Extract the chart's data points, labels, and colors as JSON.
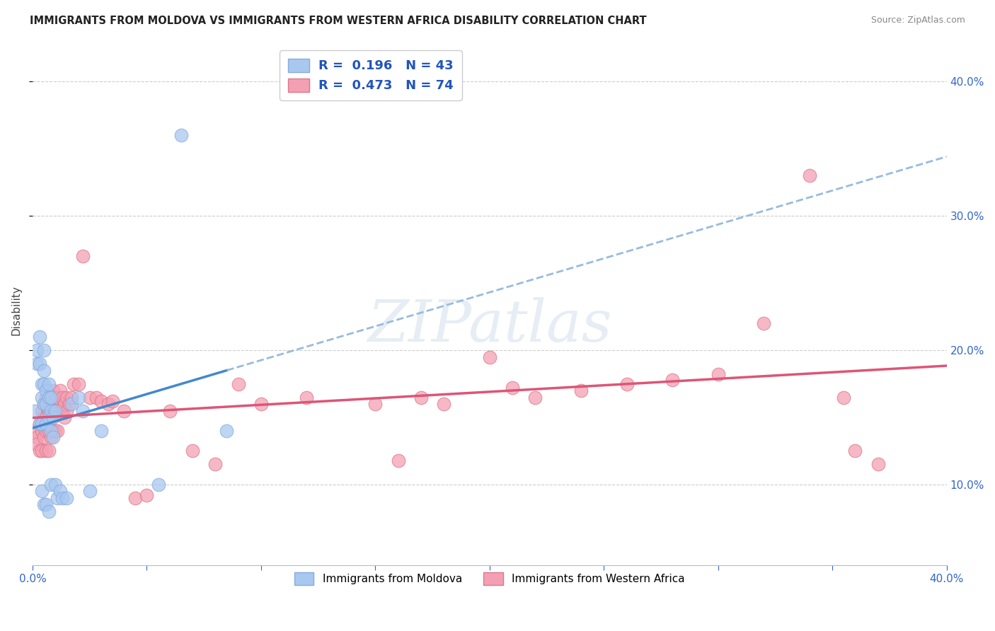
{
  "title": "IMMIGRANTS FROM MOLDOVA VS IMMIGRANTS FROM WESTERN AFRICA DISABILITY CORRELATION CHART",
  "source": "Source: ZipAtlas.com",
  "ylabel": "Disability",
  "xlim": [
    0.0,
    0.4
  ],
  "ylim": [
    0.04,
    0.42
  ],
  "R_moldova": 0.196,
  "N_moldova": 43,
  "R_western_africa": 0.473,
  "N_western_africa": 74,
  "color_moldova": "#a8c8f0",
  "color_moldova_edge": "#88aadd",
  "color_western_africa": "#f4a0b4",
  "color_western_africa_edge": "#dd7788",
  "trendline_moldova_solid_color": "#4488cc",
  "trendline_moldova_dash_color": "#99bbdd",
  "trendline_western_africa_color": "#dd5577",
  "background_color": "#ffffff",
  "grid_color": "#cccccc",
  "moldova_x": [
    0.001,
    0.002,
    0.002,
    0.003,
    0.003,
    0.003,
    0.004,
    0.004,
    0.004,
    0.004,
    0.005,
    0.005,
    0.005,
    0.005,
    0.005,
    0.006,
    0.006,
    0.006,
    0.006,
    0.007,
    0.007,
    0.007,
    0.007,
    0.008,
    0.008,
    0.008,
    0.008,
    0.009,
    0.009,
    0.01,
    0.01,
    0.011,
    0.012,
    0.013,
    0.015,
    0.017,
    0.02,
    0.022,
    0.025,
    0.03,
    0.055,
    0.065,
    0.085
  ],
  "moldova_y": [
    0.155,
    0.2,
    0.19,
    0.21,
    0.19,
    0.145,
    0.175,
    0.165,
    0.145,
    0.095,
    0.2,
    0.185,
    0.175,
    0.16,
    0.085,
    0.17,
    0.16,
    0.145,
    0.085,
    0.175,
    0.165,
    0.15,
    0.08,
    0.165,
    0.155,
    0.14,
    0.1,
    0.15,
    0.135,
    0.155,
    0.1,
    0.09,
    0.095,
    0.09,
    0.09,
    0.16,
    0.165,
    0.155,
    0.095,
    0.14,
    0.1,
    0.36,
    0.14
  ],
  "western_africa_x": [
    0.001,
    0.002,
    0.002,
    0.003,
    0.003,
    0.004,
    0.004,
    0.004,
    0.005,
    0.005,
    0.005,
    0.006,
    0.006,
    0.006,
    0.006,
    0.007,
    0.007,
    0.007,
    0.007,
    0.008,
    0.008,
    0.008,
    0.009,
    0.009,
    0.009,
    0.01,
    0.01,
    0.01,
    0.011,
    0.011,
    0.011,
    0.012,
    0.012,
    0.013,
    0.013,
    0.014,
    0.014,
    0.015,
    0.015,
    0.016,
    0.017,
    0.018,
    0.02,
    0.022,
    0.025,
    0.028,
    0.03,
    0.033,
    0.035,
    0.04,
    0.045,
    0.05,
    0.06,
    0.07,
    0.08,
    0.09,
    0.1,
    0.12,
    0.15,
    0.16,
    0.17,
    0.18,
    0.2,
    0.21,
    0.22,
    0.24,
    0.26,
    0.28,
    0.3,
    0.32,
    0.34,
    0.355,
    0.36,
    0.37
  ],
  "western_africa_y": [
    0.14,
    0.135,
    0.13,
    0.145,
    0.125,
    0.155,
    0.14,
    0.125,
    0.16,
    0.15,
    0.135,
    0.165,
    0.15,
    0.14,
    0.125,
    0.16,
    0.155,
    0.14,
    0.125,
    0.16,
    0.15,
    0.135,
    0.17,
    0.155,
    0.14,
    0.165,
    0.155,
    0.14,
    0.165,
    0.155,
    0.14,
    0.17,
    0.155,
    0.165,
    0.155,
    0.16,
    0.15,
    0.165,
    0.155,
    0.16,
    0.165,
    0.175,
    0.175,
    0.27,
    0.165,
    0.165,
    0.162,
    0.16,
    0.162,
    0.155,
    0.09,
    0.092,
    0.155,
    0.125,
    0.115,
    0.175,
    0.16,
    0.165,
    0.16,
    0.118,
    0.165,
    0.16,
    0.195,
    0.172,
    0.165,
    0.17,
    0.175,
    0.178,
    0.182,
    0.22,
    0.33,
    0.165,
    0.125,
    0.115
  ]
}
